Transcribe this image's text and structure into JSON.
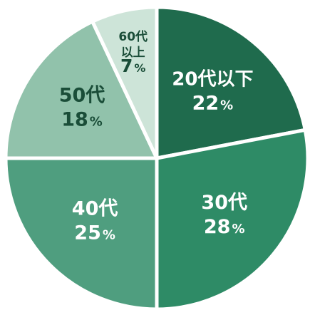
{
  "chart_data": {
    "type": "pie",
    "slices": [
      {
        "category_line1": "20代以下",
        "category_line2": "",
        "value": 22,
        "pct_number": "22",
        "pct_sign": "%",
        "color": "#1f6b4d",
        "text_color": "#ffffff"
      },
      {
        "category_line1": "30代",
        "category_line2": "",
        "value": 28,
        "pct_number": "28",
        "pct_sign": "%",
        "color": "#2e8b66",
        "text_color": "#ffffff"
      },
      {
        "category_line1": "40代",
        "category_line2": "",
        "value": 25,
        "pct_number": "25",
        "pct_sign": "%",
        "color": "#4f9e7f",
        "text_color": "#ffffff"
      },
      {
        "category_line1": "50代",
        "category_line2": "",
        "value": 18,
        "pct_number": "18",
        "pct_sign": "%",
        "color": "#91c2ab",
        "text_color": "#1a4d38"
      },
      {
        "category_line1": "60代",
        "category_line2": "以上",
        "value": 7,
        "pct_number": "7",
        "pct_sign": "%",
        "color": "#cde4d8",
        "text_color": "#1a4d38"
      }
    ]
  }
}
